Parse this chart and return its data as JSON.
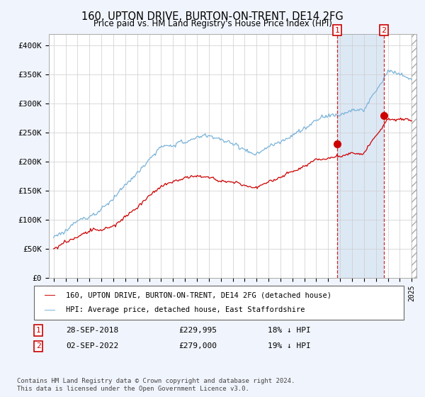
{
  "title": "160, UPTON DRIVE, BURTON-ON-TRENT, DE14 2FG",
  "subtitle": "Price paid vs. HM Land Registry's House Price Index (HPI)",
  "ylim": [
    0,
    420000
  ],
  "yticks": [
    0,
    50000,
    100000,
    150000,
    200000,
    250000,
    300000,
    350000,
    400000
  ],
  "ytick_labels": [
    "£0",
    "£50K",
    "£100K",
    "£150K",
    "£200K",
    "£250K",
    "£300K",
    "£350K",
    "£400K"
  ],
  "hpi_color": "#7ab3d9",
  "price_color": "#cc0000",
  "sale1_date": "28-SEP-2018",
  "sale1_price": 229995,
  "sale1_price_str": "£229,995",
  "sale1_pct": "18%",
  "sale2_date": "02-SEP-2022",
  "sale2_price": 279000,
  "sale2_price_str": "£279,000",
  "sale2_pct": "19%",
  "sale1_x": 2018.75,
  "sale2_x": 2022.67,
  "legend_label1": "160, UPTON DRIVE, BURTON-ON-TRENT, DE14 2FG (detached house)",
  "legend_label2": "HPI: Average price, detached house, East Staffordshire",
  "footnote": "Contains HM Land Registry data © Crown copyright and database right 2024.\nThis data is licensed under the Open Government Licence v3.0.",
  "bg_color": "#f0f4fc",
  "plot_bg_color": "#ffffff",
  "shade_color": "#dde8f5"
}
